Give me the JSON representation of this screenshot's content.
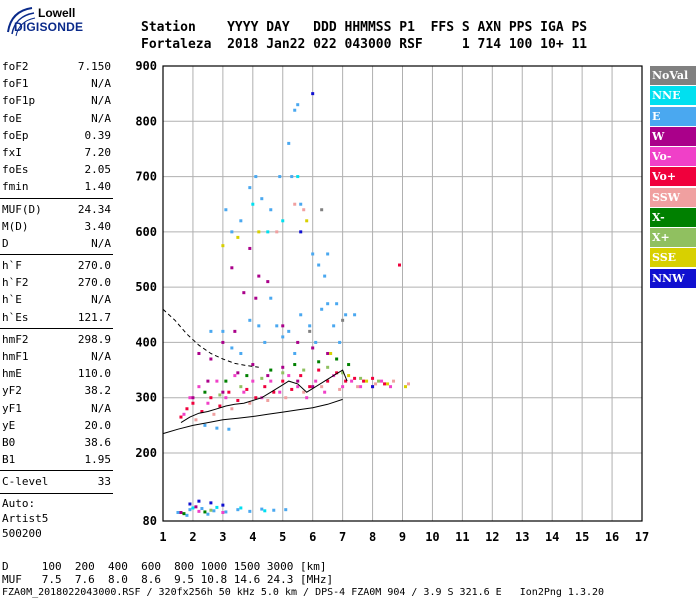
{
  "logo": {
    "line1": "Lowell",
    "line2": "DIGISONDE"
  },
  "header": {
    "line1": "Station    YYYY DAY   DDD HHMMSS P1  FFS S AXN PPS IGA PS",
    "line2": "Fortaleza  2018 Jan22 022 043000 RSF     1 714 100 10+ 11"
  },
  "params": {
    "group1": [
      {
        "label": "foF2",
        "value": "7.150"
      },
      {
        "label": "foF1",
        "value": "N/A"
      },
      {
        "label": "foF1p",
        "value": "N/A"
      },
      {
        "label": "foE",
        "value": "N/A"
      },
      {
        "label": "foEp",
        "value": "0.39"
      },
      {
        "label": "fxI",
        "value": "7.20"
      },
      {
        "label": "foEs",
        "value": "2.05"
      },
      {
        "label": "fmin",
        "value": "1.40"
      }
    ],
    "group2": [
      {
        "label": "MUF(D)",
        "value": "24.34"
      },
      {
        "label": "M(D)",
        "value": "3.40"
      },
      {
        "label": "D",
        "value": "N/A"
      }
    ],
    "group3": [
      {
        "label": "h`F",
        "value": "270.0"
      },
      {
        "label": "h`F2",
        "value": "270.0"
      },
      {
        "label": "h`E",
        "value": "N/A"
      },
      {
        "label": "h`Es",
        "value": "121.7"
      }
    ],
    "group4": [
      {
        "label": "hmF2",
        "value": "298.9"
      },
      {
        "label": "hmF1",
        "value": "N/A"
      },
      {
        "label": "hmE",
        "value": "110.0"
      },
      {
        "label": "yF2",
        "value": "38.2"
      },
      {
        "label": "yF1",
        "value": "N/A"
      },
      {
        "label": "yE",
        "value": "20.0"
      },
      {
        "label": "B0",
        "value": "38.6"
      },
      {
        "label": "B1",
        "value": "1.95"
      }
    ],
    "group5": [
      {
        "label": "C-level",
        "value": "33"
      }
    ],
    "auto": {
      "line1": "Auto:",
      "line2": "Artist5",
      "line3": "500200"
    }
  },
  "legend": [
    {
      "label": "NoVal",
      "color": "#808080"
    },
    {
      "label": "NNE",
      "color": "#00e0f0"
    },
    {
      "label": "E",
      "color": "#4aa8f0"
    },
    {
      "label": "W",
      "color": "#aa008a"
    },
    {
      "label": "Vo-",
      "color": "#f040c8"
    },
    {
      "label": "Vo+",
      "color": "#f0003c"
    },
    {
      "label": "SSW",
      "color": "#f0a0a0"
    },
    {
      "label": "X-",
      "color": "#008000"
    },
    {
      "label": "X+",
      "color": "#90c060"
    },
    {
      "label": "SSE",
      "color": "#d8d000"
    },
    {
      "label": "NNW",
      "color": "#1010d0"
    }
  ],
  "footer": {
    "line1": "D     100  200  400  600  800 1000 1500 3000 [km]",
    "line2": "MUF   7.5  7.6  8.0  8.6  9.5 10.8 14.6 24.3 [MHz]",
    "line3": "FZA0M_2018022043000.RSF / 320fx256h 50 kHz 5.0 km / DPS-4 FZA0M 904 / 3.9 S 321.6 E   Ion2Png 1.3.20"
  },
  "chart_data": {
    "type": "scatter",
    "title": "",
    "xlabel": "",
    "ylabel": "",
    "xlim": [
      1,
      17
    ],
    "ylim": [
      80,
      900
    ],
    "xticks": [
      1,
      2,
      3,
      4,
      5,
      6,
      7,
      8,
      9,
      10,
      11,
      12,
      13,
      14,
      15,
      16,
      17
    ],
    "yticks": [
      80,
      200,
      300,
      400,
      500,
      600,
      700,
      800,
      900
    ],
    "grid": true,
    "series": [
      {
        "name": "E",
        "color": "#4aa8f0",
        "points": [
          [
            3.1,
            640
          ],
          [
            3.3,
            600
          ],
          [
            3.6,
            620
          ],
          [
            3.9,
            680
          ],
          [
            4.1,
            700
          ],
          [
            4.3,
            660
          ],
          [
            4.6,
            640
          ],
          [
            4.9,
            700
          ],
          [
            5.2,
            760
          ],
          [
            5.4,
            820
          ],
          [
            5.5,
            830
          ],
          [
            5.3,
            700
          ],
          [
            5.6,
            650
          ],
          [
            6.0,
            560
          ],
          [
            6.2,
            540
          ],
          [
            6.4,
            520
          ],
          [
            6.5,
            560
          ],
          [
            6.8,
            470
          ],
          [
            7.1,
            450
          ],
          [
            7.4,
            450
          ],
          [
            2.6,
            420
          ],
          [
            3.0,
            420
          ],
          [
            3.3,
            390
          ],
          [
            3.6,
            380
          ],
          [
            3.9,
            440
          ],
          [
            4.2,
            430
          ],
          [
            4.4,
            400
          ],
          [
            4.6,
            480
          ],
          [
            4.8,
            430
          ],
          [
            5.0,
            410
          ],
          [
            5.2,
            420
          ],
          [
            5.4,
            380
          ],
          [
            5.6,
            450
          ],
          [
            5.9,
            430
          ],
          [
            6.1,
            400
          ],
          [
            6.3,
            460
          ],
          [
            6.5,
            470
          ],
          [
            6.7,
            430
          ],
          [
            6.9,
            400
          ],
          [
            2.4,
            250
          ],
          [
            2.8,
            245
          ],
          [
            3.2,
            243
          ],
          [
            1.5,
            95
          ],
          [
            1.9,
            100
          ],
          [
            2.3,
            102
          ],
          [
            2.7,
            98
          ],
          [
            3.1,
            96
          ],
          [
            3.5,
            100
          ],
          [
            3.9,
            97
          ],
          [
            4.3,
            101
          ],
          [
            4.7,
            99
          ],
          [
            5.1,
            100
          ],
          [
            1.8,
            90
          ],
          [
            2.5,
            92
          ]
        ]
      },
      {
        "name": "NNE",
        "color": "#00e0f0",
        "points": [
          [
            4.0,
            650
          ],
          [
            4.5,
            600
          ],
          [
            5.0,
            620
          ],
          [
            5.5,
            700
          ],
          [
            2.0,
            103
          ],
          [
            2.8,
            104
          ],
          [
            3.6,
            103
          ],
          [
            4.4,
            98
          ]
        ]
      },
      {
        "name": "W",
        "color": "#aa008a",
        "points": [
          [
            2.2,
            380
          ],
          [
            2.6,
            370
          ],
          [
            3.0,
            400
          ],
          [
            3.4,
            420
          ],
          [
            3.7,
            490
          ],
          [
            4.1,
            480
          ],
          [
            4.5,
            510
          ],
          [
            5.0,
            430
          ],
          [
            5.5,
            400
          ],
          [
            6.0,
            390
          ],
          [
            6.5,
            380
          ],
          [
            2.0,
            300
          ],
          [
            2.5,
            330
          ],
          [
            3.0,
            310
          ],
          [
            3.5,
            345
          ],
          [
            4.0,
            360
          ],
          [
            4.5,
            340
          ],
          [
            5.0,
            355
          ],
          [
            5.5,
            330
          ],
          [
            6.0,
            320
          ],
          [
            3.3,
            535
          ],
          [
            3.9,
            570
          ],
          [
            4.2,
            520
          ],
          [
            1.6,
            95
          ],
          [
            2.1,
            105
          ]
        ]
      },
      {
        "name": "Vo-",
        "color": "#f040c8",
        "points": [
          [
            1.7,
            270
          ],
          [
            1.9,
            300
          ],
          [
            2.2,
            320
          ],
          [
            2.5,
            290
          ],
          [
            2.8,
            330
          ],
          [
            3.1,
            300
          ],
          [
            3.4,
            340
          ],
          [
            3.7,
            310
          ],
          [
            4.0,
            330
          ],
          [
            4.3,
            300
          ],
          [
            4.6,
            330
          ],
          [
            4.9,
            310
          ],
          [
            5.2,
            340
          ],
          [
            5.5,
            320
          ],
          [
            5.8,
            300
          ],
          [
            6.1,
            330
          ],
          [
            6.4,
            310
          ],
          [
            6.7,
            340
          ],
          [
            7.0,
            320
          ],
          [
            7.3,
            330
          ],
          [
            7.6,
            320
          ],
          [
            8.0,
            320
          ],
          [
            8.3,
            330
          ],
          [
            8.6,
            320
          ],
          [
            2.2,
            97
          ],
          [
            3.0,
            95
          ]
        ]
      },
      {
        "name": "Vo+",
        "color": "#f0003c",
        "points": [
          [
            1.6,
            265
          ],
          [
            1.8,
            280
          ],
          [
            2.0,
            290
          ],
          [
            2.3,
            275
          ],
          [
            2.6,
            300
          ],
          [
            2.9,
            285
          ],
          [
            3.2,
            310
          ],
          [
            3.5,
            295
          ],
          [
            3.8,
            315
          ],
          [
            4.1,
            300
          ],
          [
            4.4,
            320
          ],
          [
            4.7,
            310
          ],
          [
            5.0,
            330
          ],
          [
            5.3,
            315
          ],
          [
            5.6,
            340
          ],
          [
            5.9,
            320
          ],
          [
            6.2,
            350
          ],
          [
            6.5,
            330
          ],
          [
            6.8,
            345
          ],
          [
            7.1,
            330
          ],
          [
            7.4,
            335
          ],
          [
            7.7,
            330
          ],
          [
            8.0,
            335
          ],
          [
            8.4,
            325
          ],
          [
            8.9,
            540
          ]
        ]
      },
      {
        "name": "SSW",
        "color": "#f0a0a0",
        "points": [
          [
            2.1,
            260
          ],
          [
            2.7,
            270
          ],
          [
            3.3,
            280
          ],
          [
            3.9,
            290
          ],
          [
            4.5,
            295
          ],
          [
            5.1,
            300
          ],
          [
            5.7,
            310
          ],
          [
            6.3,
            320
          ],
          [
            6.9,
            315
          ],
          [
            7.5,
            320
          ],
          [
            8.1,
            325
          ],
          [
            8.7,
            330
          ],
          [
            9.2,
            325
          ],
          [
            5.4,
            650
          ],
          [
            5.7,
            640
          ],
          [
            4.8,
            600
          ]
        ]
      },
      {
        "name": "X-",
        "color": "#008000",
        "points": [
          [
            2.4,
            310
          ],
          [
            3.1,
            330
          ],
          [
            3.8,
            340
          ],
          [
            4.6,
            350
          ],
          [
            5.4,
            360
          ],
          [
            6.2,
            365
          ],
          [
            6.8,
            370
          ],
          [
            7.2,
            360
          ],
          [
            1.7,
            93
          ],
          [
            2.4,
            96
          ]
        ]
      },
      {
        "name": "X+",
        "color": "#90c060",
        "points": [
          [
            2.9,
            305
          ],
          [
            3.6,
            320
          ],
          [
            4.3,
            335
          ],
          [
            5.0,
            345
          ],
          [
            5.7,
            350
          ],
          [
            6.5,
            355
          ],
          [
            7.0,
            345
          ],
          [
            7.6,
            335
          ],
          [
            8.2,
            330
          ],
          [
            2.6,
            99
          ]
        ]
      },
      {
        "name": "SSE",
        "color": "#d8d000",
        "points": [
          [
            3.5,
            590
          ],
          [
            4.2,
            600
          ],
          [
            5.8,
            620
          ],
          [
            6.6,
            380
          ],
          [
            7.2,
            340
          ],
          [
            7.8,
            330
          ],
          [
            8.5,
            325
          ],
          [
            9.1,
            320
          ],
          [
            3.0,
            575
          ]
        ]
      },
      {
        "name": "NNW",
        "color": "#1010d0",
        "points": [
          [
            2.2,
            115
          ],
          [
            2.6,
            112
          ],
          [
            3.0,
            108
          ],
          [
            1.9,
            110
          ],
          [
            8.0,
            320
          ],
          [
            6.0,
            850
          ],
          [
            5.6,
            600
          ]
        ]
      },
      {
        "name": "NoVal",
        "color": "#808080",
        "points": [
          [
            6.3,
            640
          ],
          [
            5.9,
            420
          ],
          [
            7.0,
            440
          ]
        ]
      }
    ],
    "curves": [
      {
        "style": "dashed",
        "color": "#000000",
        "points": [
          [
            1,
            460
          ],
          [
            1.4,
            440
          ],
          [
            1.8,
            415
          ],
          [
            2.2,
            395
          ],
          [
            2.6,
            380
          ],
          [
            3.0,
            370
          ],
          [
            3.4,
            362
          ],
          [
            3.8,
            358
          ],
          [
            4.2,
            355
          ]
        ]
      },
      {
        "style": "solid",
        "color": "#000000",
        "points": [
          [
            1.0,
            235
          ],
          [
            1.5,
            243
          ],
          [
            2.0,
            250
          ],
          [
            2.5,
            255
          ],
          [
            3.0,
            260
          ],
          [
            3.5,
            263
          ],
          [
            4.0,
            266
          ],
          [
            4.5,
            270
          ],
          [
            5.0,
            274
          ],
          [
            5.5,
            278
          ],
          [
            6.0,
            282
          ],
          [
            6.5,
            288
          ],
          [
            7.0,
            297
          ]
        ]
      },
      {
        "style": "solid",
        "color": "#000000",
        "points": [
          [
            1.6,
            255
          ],
          [
            1.9,
            265
          ],
          [
            2.2,
            272
          ],
          [
            2.5,
            275
          ],
          [
            2.8,
            280
          ],
          [
            3.1,
            285
          ],
          [
            3.4,
            288
          ],
          [
            3.7,
            290
          ],
          [
            4.0,
            295
          ],
          [
            4.3,
            300
          ],
          [
            4.6,
            310
          ],
          [
            4.9,
            320
          ],
          [
            5.2,
            330
          ],
          [
            5.5,
            325
          ],
          [
            5.8,
            310
          ],
          [
            6.1,
            320
          ],
          [
            6.4,
            330
          ],
          [
            6.7,
            340
          ],
          [
            7.0,
            350
          ],
          [
            7.15,
            330
          ]
        ]
      }
    ]
  }
}
